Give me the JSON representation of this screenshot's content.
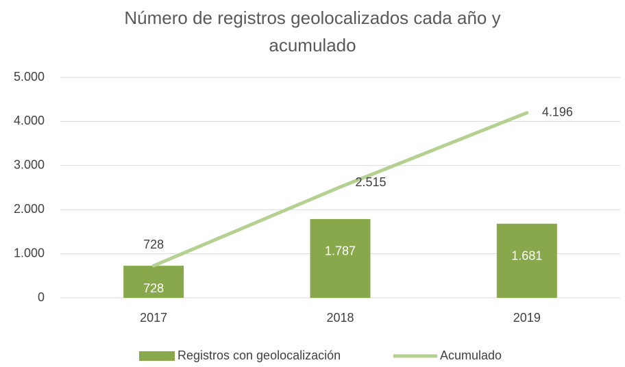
{
  "chart_data": {
    "type": "combo",
    "title": "Número de registros geolocalizados cada año y acumulado",
    "categories": [
      "2017",
      "2018",
      "2019"
    ],
    "series": [
      {
        "name": "Registros con geolocalización",
        "type": "bar",
        "color": "#88a84b",
        "values": [
          728,
          1787,
          1681
        ],
        "value_labels": [
          "728",
          "1.787",
          "1.681"
        ]
      },
      {
        "name": "Acumulado",
        "type": "line",
        "color": "#b4d192",
        "values": [
          728,
          2515,
          4196
        ],
        "value_labels": [
          "728",
          "2.515",
          "4.196"
        ]
      }
    ],
    "ylim": [
      0,
      5000
    ],
    "yticks": [
      0,
      {
        "value": 1000,
        "label": "1.000"
      },
      {
        "value": 2000,
        "label": "2.000"
      },
      {
        "value": 3000,
        "label": "3.000"
      },
      {
        "value": 4000,
        "label": "4.000"
      },
      {
        "value": 5000,
        "label": "5.000"
      }
    ],
    "grid": true,
    "legend": "bottom"
  }
}
